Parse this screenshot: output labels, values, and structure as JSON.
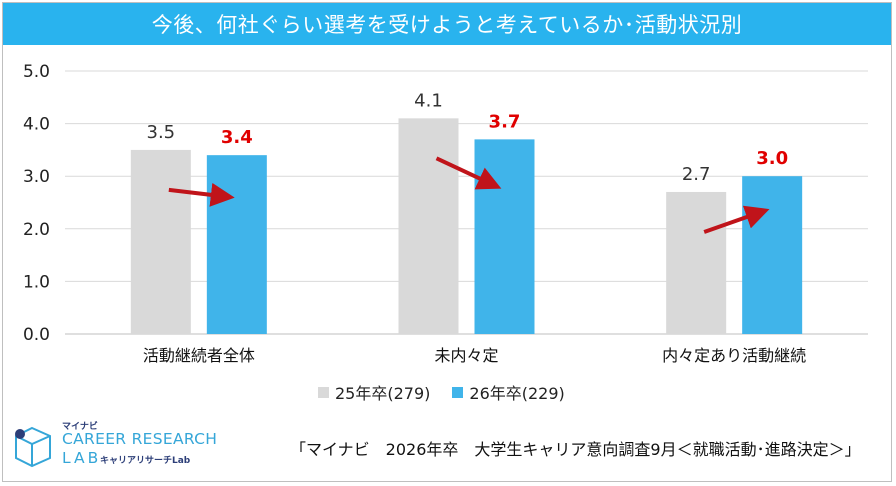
{
  "title": "今後、何社ぐらい選考を受けようと考えているか･活動状況別",
  "chart_data": {
    "type": "bar",
    "categories": [
      "活動継続者全体",
      "未内々定",
      "内々定あり活動継続"
    ],
    "series": [
      {
        "name": "25年卒(279)",
        "values": [
          3.5,
          4.1,
          2.7
        ],
        "labels": [
          "3.5",
          "4.1",
          "2.7"
        ],
        "color": "#d9d9d9",
        "label_color": "#333333"
      },
      {
        "name": "26年卒(229)",
        "values": [
          3.4,
          3.7,
          3.0
        ],
        "labels": [
          "3.4",
          "3.7",
          "3.0"
        ],
        "color": "#40b4ea",
        "label_color": "#e00000"
      }
    ],
    "ylim": [
      0,
      5
    ],
    "yticks": [
      "0.0",
      "1.0",
      "2.0",
      "3.0",
      "4.0",
      "5.0"
    ],
    "grid": true,
    "legend_position": "bottom",
    "arrow_color": "#c0141a"
  },
  "logo": {
    "small": "マイナビ",
    "main": "CAREER RESEARCH",
    "lab": "LAB",
    "sub": "キャリアリサーチLab"
  },
  "source": "「マイナビ　2026年卒　大学生キャリア意向調査9月＜就職活動･進路決定＞」"
}
